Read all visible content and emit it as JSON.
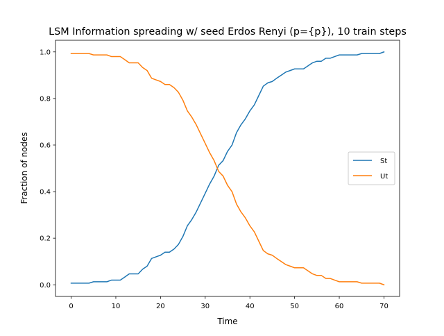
{
  "chart_data": {
    "type": "line",
    "title": "LSM Information spreading w/ seed Erdos Renyi (p={p}), 10 train steps",
    "xlabel": "Time",
    "ylabel": "Fraction of nodes",
    "xlim": [
      -3.5,
      73.5
    ],
    "ylim": [
      -0.05,
      1.05
    ],
    "xticks": [
      0,
      10,
      20,
      30,
      40,
      50,
      60,
      70
    ],
    "yticks": [
      0.0,
      0.2,
      0.4,
      0.6,
      0.8,
      1.0
    ],
    "xtick_labels": [
      "0",
      "10",
      "20",
      "30",
      "40",
      "50",
      "60",
      "70"
    ],
    "ytick_labels": [
      "0.0",
      "0.2",
      "0.4",
      "0.6",
      "0.8",
      "1.0"
    ],
    "grid": false,
    "legend": "center-right",
    "x": [
      0,
      1,
      2,
      3,
      4,
      5,
      6,
      7,
      8,
      9,
      10,
      11,
      12,
      13,
      14,
      15,
      16,
      17,
      18,
      19,
      20,
      21,
      22,
      23,
      24,
      25,
      26,
      27,
      28,
      29,
      30,
      31,
      32,
      33,
      34,
      35,
      36,
      37,
      38,
      39,
      40,
      41,
      42,
      43,
      44,
      45,
      46,
      47,
      48,
      49,
      50,
      51,
      52,
      53,
      54,
      55,
      56,
      57,
      58,
      59,
      60,
      61,
      62,
      63,
      64,
      65,
      66,
      67,
      68,
      69,
      70
    ],
    "series": [
      {
        "name": "St",
        "color": "#1f77b4",
        "values": [
          0.007,
          0.007,
          0.007,
          0.007,
          0.007,
          0.013,
          0.013,
          0.013,
          0.013,
          0.02,
          0.02,
          0.02,
          0.033,
          0.047,
          0.047,
          0.047,
          0.067,
          0.08,
          0.113,
          0.12,
          0.127,
          0.14,
          0.14,
          0.153,
          0.173,
          0.207,
          0.253,
          0.28,
          0.313,
          0.353,
          0.393,
          0.433,
          0.467,
          0.513,
          0.533,
          0.573,
          0.6,
          0.653,
          0.687,
          0.713,
          0.747,
          0.773,
          0.813,
          0.853,
          0.867,
          0.873,
          0.887,
          0.9,
          0.913,
          0.92,
          0.927,
          0.927,
          0.927,
          0.94,
          0.953,
          0.96,
          0.96,
          0.973,
          0.973,
          0.98,
          0.987,
          0.987,
          0.987,
          0.987,
          0.987,
          0.993,
          0.993,
          0.993,
          0.993,
          0.993,
          1.0
        ]
      },
      {
        "name": "Ut",
        "color": "#ff7f0e",
        "values": [
          0.993,
          0.993,
          0.993,
          0.993,
          0.993,
          0.987,
          0.987,
          0.987,
          0.987,
          0.98,
          0.98,
          0.98,
          0.967,
          0.953,
          0.953,
          0.953,
          0.933,
          0.92,
          0.887,
          0.88,
          0.873,
          0.86,
          0.86,
          0.847,
          0.827,
          0.793,
          0.747,
          0.72,
          0.687,
          0.647,
          0.607,
          0.567,
          0.533,
          0.487,
          0.467,
          0.427,
          0.4,
          0.347,
          0.313,
          0.287,
          0.253,
          0.227,
          0.187,
          0.147,
          0.133,
          0.127,
          0.113,
          0.1,
          0.087,
          0.08,
          0.073,
          0.073,
          0.073,
          0.06,
          0.047,
          0.04,
          0.04,
          0.027,
          0.027,
          0.02,
          0.013,
          0.013,
          0.013,
          0.013,
          0.013,
          0.007,
          0.007,
          0.007,
          0.007,
          0.007,
          0.0
        ]
      }
    ]
  }
}
